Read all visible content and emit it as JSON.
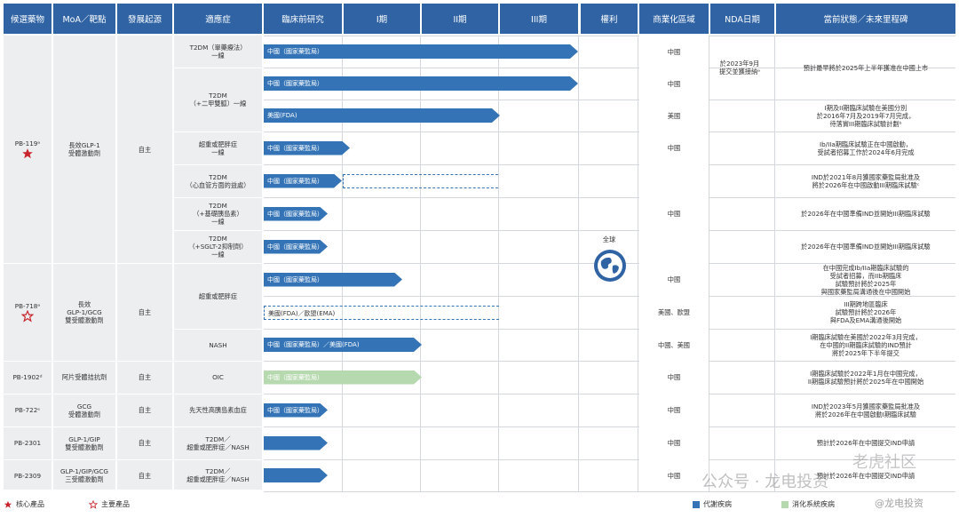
{
  "headers": [
    "候選藥物",
    "MoA／靶點",
    "發展起源",
    "適應症",
    "臨床前研究",
    "I期",
    "II期",
    "III期",
    "權利",
    "商業化區域",
    "NDA日期",
    "當前狀態／未來里程碑"
  ],
  "rows": [
    {
      "indication": "T2DM（單藥療法）\n一線",
      "bar": "中國（國家藥監局）",
      "region": "中國",
      "milestone": "預計最早將於2025年上半年獲准在中國上市"
    },
    {
      "indication": "T2DM\n（+二甲雙胍）一線",
      "bar": "中國（國家藥監局）",
      "region": "中國",
      "milestone": ""
    },
    {
      "indication": "",
      "bar": "美國(FDA)",
      "region": "美國",
      "milestone": "I期及II期臨床試驗在美國分別\n於2016年7月及2019年7月完成，\n待落實III期臨床試驗計劃ᵇ"
    },
    {
      "indication": "超重或肥胖症\n一線",
      "bar": "中國（國家藥監局）",
      "region": "中國",
      "milestone": "Ib/IIa期臨床試驗正在中國啟動，\n受試者招募工作於2024年6月完成"
    },
    {
      "indication": "T2DM\n（心血管方面的益處）",
      "bar": "中國（國家藥監局）",
      "region": "",
      "milestone": "IND於2021年8月獲國家藥監局批准及\n將於2026年在中國啟動III期臨床試驗ᶜ"
    },
    {
      "indication": "T2DM\n（+基礎胰島素）\n一線",
      "bar": "中國（國家藥監局）",
      "region": "中國",
      "milestone": "於2026年在中國準備IND並開始III期臨床試驗"
    },
    {
      "indication": "T2DM\n（+SGLT-2抑制劑）\n一線",
      "bar": "中國（國家藥監局）",
      "region": "",
      "milestone": "於2026年在中國準備IND並開始III期臨床試驗"
    },
    {
      "indication": "超重或肥胖症",
      "bar": "中國（國家藥監局）",
      "region": "中國",
      "milestone": "在中國完成Ib/IIa期臨床試驗的\n受試者招募，而IIb期臨床\n試驗預計將於2025年\n與國家藥監局溝通後在中國開始"
    },
    {
      "indication": "",
      "bar": "美國(FDA)／歐盟(EMA)",
      "region": "美國、歐盟",
      "milestone": "III期跨地區臨床\n試驗預計將於2026年\n與FDA及EMA溝通後開始"
    },
    {
      "indication": "NASH",
      "bar": "中國（國家藥監局）／美國(FDA)",
      "region": "中國、美國",
      "milestone": "I期臨床試驗在美國於2022年3月完成，\n在中國的II期臨床試驗的IND預計\n將於2025年下半年提交"
    },
    {
      "indication": "OIC",
      "bar": "中國（國家藥監局）",
      "region": "中國",
      "milestone": "I期臨床試驗於2022年1月在中國完成，\nII期臨床試驗預計將於2025年在中國開始"
    },
    {
      "indication": "先天性高胰島素血症",
      "bar": "中國（國家藥監局）",
      "region": "中國",
      "milestone": "IND於2023年5月獲國家藥監局批准及\n將於2026年在中國啟動I期臨床試驗"
    },
    {
      "indication": "T2DM／\n超重或肥胖症／NASH",
      "bar": "",
      "region": "中國",
      "milestone": "預計於2026年在中國提交IND申請"
    },
    {
      "indication": "T2DM／\n超重或肥胖症／NASH",
      "bar": "",
      "region": "中國",
      "milestone": "預計於2026年在中國提交IND申請"
    }
  ],
  "drugs": [
    {
      "name": "PB-119ᵃ",
      "moa": "長效GLP-1\n受體激動劑",
      "origin": "自主",
      "icon": "filled-star"
    },
    {
      "name": "PB-718ᵃ",
      "moa": "長效\nGLP-1/GCG\n雙受體激動劑",
      "origin": "自主",
      "icon": "outline-star"
    },
    {
      "name": "PB-1902ᵈ",
      "moa": "阿片受體拮抗劑",
      "origin": "自主"
    },
    {
      "name": "PB-722ᵉ",
      "moa": "GCG\n受體激動劑",
      "origin": "自主"
    },
    {
      "name": "PB-2301",
      "moa": "GLP-1/GIP\n雙受體激動劑",
      "origin": "自主"
    },
    {
      "name": "PB-2309",
      "moa": "GLP-1/GIP/GCG\n三受體激動劑",
      "origin": "自主"
    }
  ],
  "rights": "全球",
  "nda": "於2023年9月\n提交並獲接納ᵃ",
  "legend": {
    "core": "核心產品",
    "main": "主要產品",
    "metabolic": "代謝疾病",
    "digestive": "消化系統疾病"
  },
  "watermark": {
    "a": "公众号 · 龙电投资",
    "b": "老虎社区",
    "c": "@龙电投资"
  },
  "colors": {
    "header": "#2f63a4",
    "bar": "#3474b6",
    "green": "#b7d9b0",
    "star": "#c8242b"
  }
}
